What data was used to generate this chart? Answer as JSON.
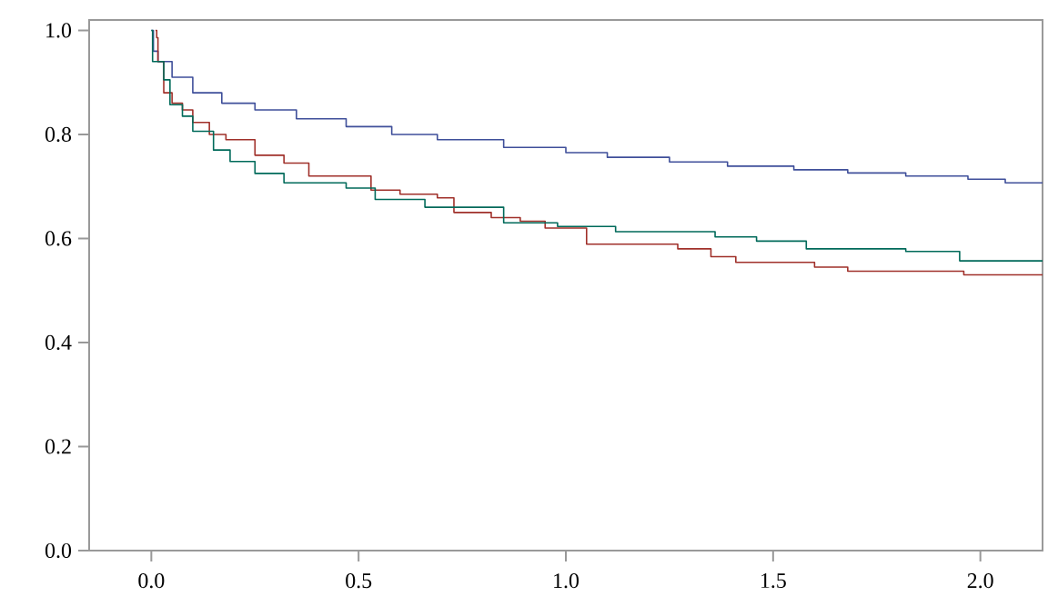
{
  "chart_data": {
    "type": "step",
    "xlim": [
      -0.15,
      2.15
    ],
    "ylim": [
      0,
      1.02
    ],
    "xticks": [
      {
        "value": 0,
        "label": "0.0"
      },
      {
        "value": 0.5,
        "label": "0.5"
      },
      {
        "value": 1,
        "label": "1.0"
      },
      {
        "value": 1.5,
        "label": "1.5"
      },
      {
        "value": 2,
        "label": "2.0"
      }
    ],
    "yticks": [
      {
        "value": 0,
        "label": "0.0"
      },
      {
        "value": 0.2,
        "label": "0.2"
      },
      {
        "value": 0.4,
        "label": "0.4"
      },
      {
        "value": 0.6,
        "label": "0.6"
      },
      {
        "value": 0.8,
        "label": "0.8"
      },
      {
        "value": 1,
        "label": "1.0"
      }
    ],
    "series": [
      {
        "color": "#3f4f9a",
        "x": [
          0,
          0.005,
          0.016,
          0.05,
          0.1,
          0.17,
          0.25,
          0.35,
          0.47,
          0.58,
          0.69,
          0.85,
          1.0,
          1.1,
          1.25,
          1.39,
          1.55,
          1.68,
          1.82,
          1.97,
          2.06,
          2.15
        ],
        "values": [
          1.0,
          0.96,
          0.94,
          0.91,
          0.88,
          0.86,
          0.847,
          0.83,
          0.815,
          0.8,
          0.79,
          0.775,
          0.765,
          0.756,
          0.747,
          0.739,
          0.732,
          0.726,
          0.72,
          0.714,
          0.707,
          0.707
        ]
      },
      {
        "color": "#a0302a",
        "x": [
          0.01,
          0.013,
          0.016,
          0.03,
          0.05,
          0.075,
          0.1,
          0.14,
          0.18,
          0.25,
          0.32,
          0.38,
          0.48,
          0.53,
          0.6,
          0.69,
          0.73,
          0.82,
          0.89,
          0.95,
          1.05,
          1.27,
          1.35,
          1.41,
          1.6,
          1.68,
          1.96,
          2.15
        ],
        "values": [
          1.0,
          0.986,
          0.94,
          0.88,
          0.86,
          0.847,
          0.823,
          0.8,
          0.79,
          0.76,
          0.745,
          0.72,
          0.72,
          0.693,
          0.685,
          0.678,
          0.65,
          0.64,
          0.633,
          0.62,
          0.589,
          0.58,
          0.565,
          0.554,
          0.545,
          0.537,
          0.53,
          0.53
        ]
      },
      {
        "color": "#006a5a",
        "x": [
          0,
          0.003,
          0.03,
          0.045,
          0.075,
          0.1,
          0.15,
          0.19,
          0.25,
          0.32,
          0.47,
          0.54,
          0.66,
          0.85,
          0.98,
          1.12,
          1.36,
          1.46,
          1.58,
          1.82,
          1.95,
          2.15
        ],
        "values": [
          1.0,
          0.94,
          0.905,
          0.857,
          0.835,
          0.806,
          0.77,
          0.748,
          0.725,
          0.707,
          0.697,
          0.675,
          0.66,
          0.63,
          0.623,
          0.613,
          0.603,
          0.595,
          0.58,
          0.575,
          0.557,
          0.557
        ]
      }
    ]
  }
}
